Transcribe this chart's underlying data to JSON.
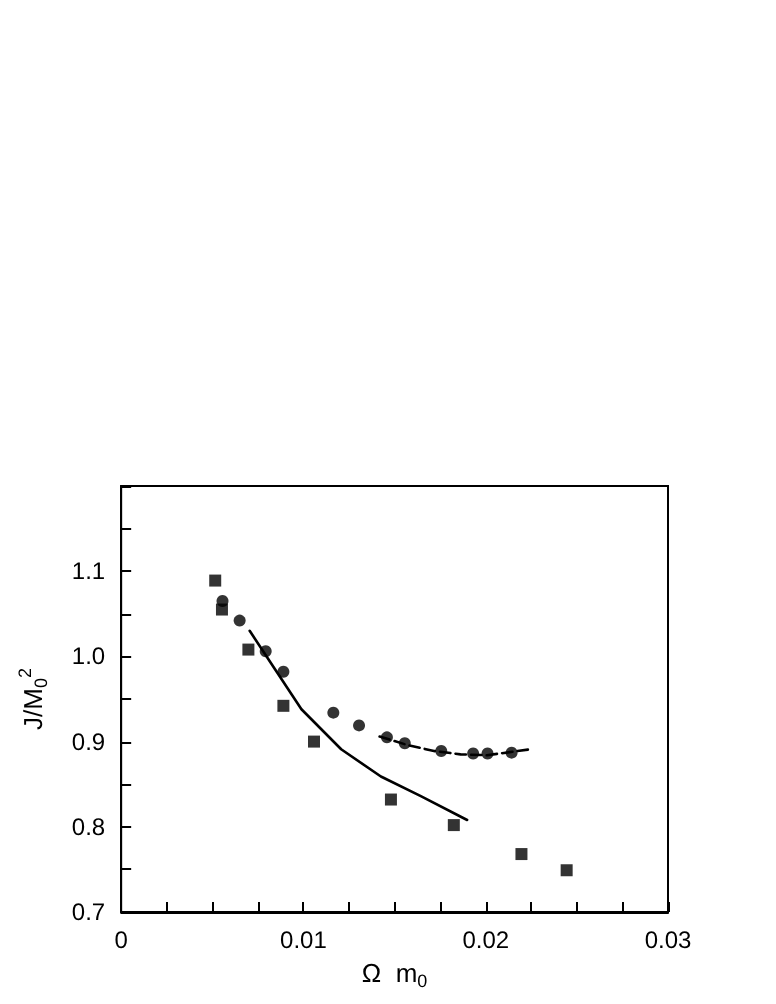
{
  "chart_data": {
    "type": "scatter",
    "xlabel": "Ω  m$_{0}$",
    "ylabel": "J/M$_{0}$$^{2}$",
    "xlim": [
      0,
      0.03
    ],
    "ylim": [
      0.7,
      1.2
    ],
    "xticks": [
      0,
      {
        "value": 0.0025,
        "label": null
      },
      {
        "value": 0.005,
        "label": null
      },
      {
        "value": 0.0075,
        "label": null
      },
      0.01,
      {
        "value": 0.0125,
        "label": null
      },
      {
        "value": 0.015,
        "label": null
      },
      {
        "value": 0.0175,
        "label": null
      },
      0.02,
      {
        "value": 0.0225,
        "label": null
      },
      {
        "value": 0.025,
        "label": null
      },
      {
        "value": 0.0275,
        "label": null
      },
      0.03
    ],
    "yticks": [
      0.7,
      {
        "value": 0.75,
        "label": null
      },
      0.8,
      {
        "value": 0.85,
        "label": null
      },
      0.9,
      {
        "value": 0.95,
        "label": null
      },
      {
        "value": 1.0,
        "label": "1.0"
      },
      {
        "value": 1.05,
        "label": null
      },
      1.1,
      {
        "value": 1.15,
        "label": null
      },
      {
        "value": 1.2,
        "label": null
      }
    ],
    "grid": false,
    "series": [
      {
        "marker": "square",
        "color": "#000000",
        "x": [
          0.00516,
          0.00553,
          0.00698,
          0.0089,
          0.01058,
          0.0148,
          0.01825,
          0.02196,
          0.02444
        ],
        "values": [
          1.089,
          1.055,
          1.008,
          0.942,
          0.9,
          0.832,
          0.802,
          0.768,
          0.749
        ]
      },
      {
        "marker": "circle",
        "color": "#000000",
        "x": [
          0.00556,
          0.0065,
          0.00793,
          0.0089,
          0.01164,
          0.01305,
          0.01458,
          0.01556,
          0.01756,
          0.01931,
          0.0201,
          0.02142
        ],
        "values": [
          1.065,
          1.042,
          1.006,
          0.982,
          0.934,
          0.919,
          0.905,
          0.898,
          0.889,
          0.886,
          0.886,
          0.887
        ]
      },
      {
        "type": "line",
        "line_style": "solid",
        "marker": "none",
        "color": "#000000",
        "x": [
          0.00705,
          0.00844,
          0.00989,
          0.01207,
          0.01425,
          0.01644,
          0.01898
        ],
        "values": [
          1.03,
          0.985,
          0.938,
          0.891,
          0.859,
          0.836,
          0.808
        ]
      },
      {
        "type": "line",
        "line_style": "dashed",
        "marker": "none",
        "color": "#000000",
        "x": [
          0.01418,
          0.0157,
          0.01716,
          0.01862,
          0.02007,
          0.02247
        ],
        "values": [
          0.906,
          0.896,
          0.889,
          0.885,
          0.884,
          0.891
        ]
      }
    ]
  }
}
